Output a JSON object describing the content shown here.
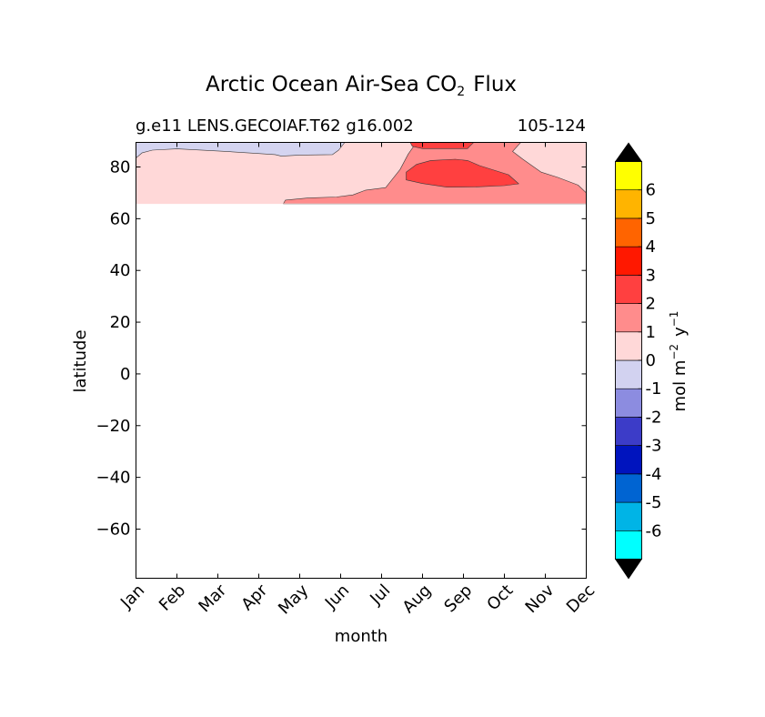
{
  "chart_data": {
    "type": "heatmap",
    "title": "Arctic Ocean Air-Sea CO",
    "title_subscript": "2",
    "title_suffix": "Flux",
    "subtitle_left": "g.e11 LENS.GECOIAF.T62 g16.002",
    "subtitle_right": "105-124",
    "xlabel": "month",
    "ylabel": "latitude",
    "x_ticks": [
      "Jan",
      "Feb",
      "Mar",
      "Apr",
      "May",
      "Jun",
      "Jul",
      "Aug",
      "Sep",
      "Oct",
      "Nov",
      "Dec"
    ],
    "y_ticks": [
      80,
      60,
      40,
      20,
      0,
      -20,
      -40,
      -60
    ],
    "y_tick_labels": [
      "80",
      "60",
      "40",
      "20",
      "0",
      "−20",
      "−40",
      "−60"
    ],
    "ylim": [
      -79,
      89.5
    ],
    "data_extent_lat": [
      65.8,
      89.5
    ],
    "colorbar": {
      "label": "mol m",
      "label_exp1": "−2",
      "label_mid": "y",
      "label_exp2": "−1",
      "extend": "both",
      "levels": [
        "-6",
        "-5",
        "-4",
        "-3",
        "-2",
        "-1",
        "0",
        "1",
        "2",
        "3",
        "4",
        "5",
        "6"
      ],
      "colors": [
        "#00ffff",
        "#00b4e6",
        "#0064d2",
        "#0014be",
        "#3c3cc8",
        "#8c8ce0",
        "#d2d2f0",
        "#ffd8d8",
        "#ff8c8c",
        "#ff4040",
        "#ff1800",
        "#ff6400",
        "#ffb400",
        "#ffff00"
      ],
      "extend_color": "#000000"
    },
    "contours": [
      {
        "level": "-1 to 0",
        "color": "#d4d4f0",
        "points": [
          [
            0,
            83.5
          ],
          [
            0.15,
            85.5
          ],
          [
            0.4,
            86.5
          ],
          [
            1,
            87
          ],
          [
            2,
            86.2
          ],
          [
            2.9,
            85.3
          ],
          [
            3.4,
            84.8
          ],
          [
            3.55,
            84.2
          ],
          [
            4,
            84.6
          ],
          [
            4.8,
            84.8
          ],
          [
            4.95,
            86.5
          ],
          [
            5.1,
            89.5
          ],
          [
            0,
            89.5
          ]
        ]
      },
      {
        "level": "1 to 2",
        "color": "#ff8c8c",
        "points": [
          [
            3.6,
            65.8
          ],
          [
            3.65,
            67.2
          ],
          [
            4.2,
            68
          ],
          [
            4.9,
            68.4
          ],
          [
            5.3,
            69.2
          ],
          [
            5.6,
            71
          ],
          [
            6.1,
            72
          ],
          [
            6.45,
            79
          ],
          [
            6.65,
            85
          ],
          [
            6.85,
            89.5
          ],
          [
            9.4,
            89.5
          ],
          [
            9.2,
            86
          ],
          [
            9.45,
            83
          ],
          [
            9.9,
            78
          ],
          [
            10.3,
            76
          ],
          [
            10.8,
            73
          ],
          [
            11,
            70
          ],
          [
            11,
            65.8
          ]
        ]
      },
      {
        "level": "2 to 3",
        "color": "#ff4040",
        "points": [
          [
            6.6,
            78
          ],
          [
            6.85,
            81
          ],
          [
            7.2,
            82.5
          ],
          [
            7.8,
            83
          ],
          [
            8.1,
            82.5
          ],
          [
            8.4,
            80.5
          ],
          [
            9.1,
            77
          ],
          [
            9.35,
            73.5
          ],
          [
            9,
            72.8
          ],
          [
            8.3,
            72.3
          ],
          [
            7.6,
            72.2
          ],
          [
            7,
            73.6
          ],
          [
            6.6,
            75
          ]
        ]
      },
      {
        "level": "2 to 3 (top)",
        "color": "#ff4040",
        "points": [
          [
            6.7,
            89.5
          ],
          [
            6.75,
            88
          ],
          [
            7,
            87.1
          ],
          [
            8.1,
            87.1
          ],
          [
            8.15,
            88
          ],
          [
            8.25,
            89.5
          ]
        ]
      }
    ]
  }
}
